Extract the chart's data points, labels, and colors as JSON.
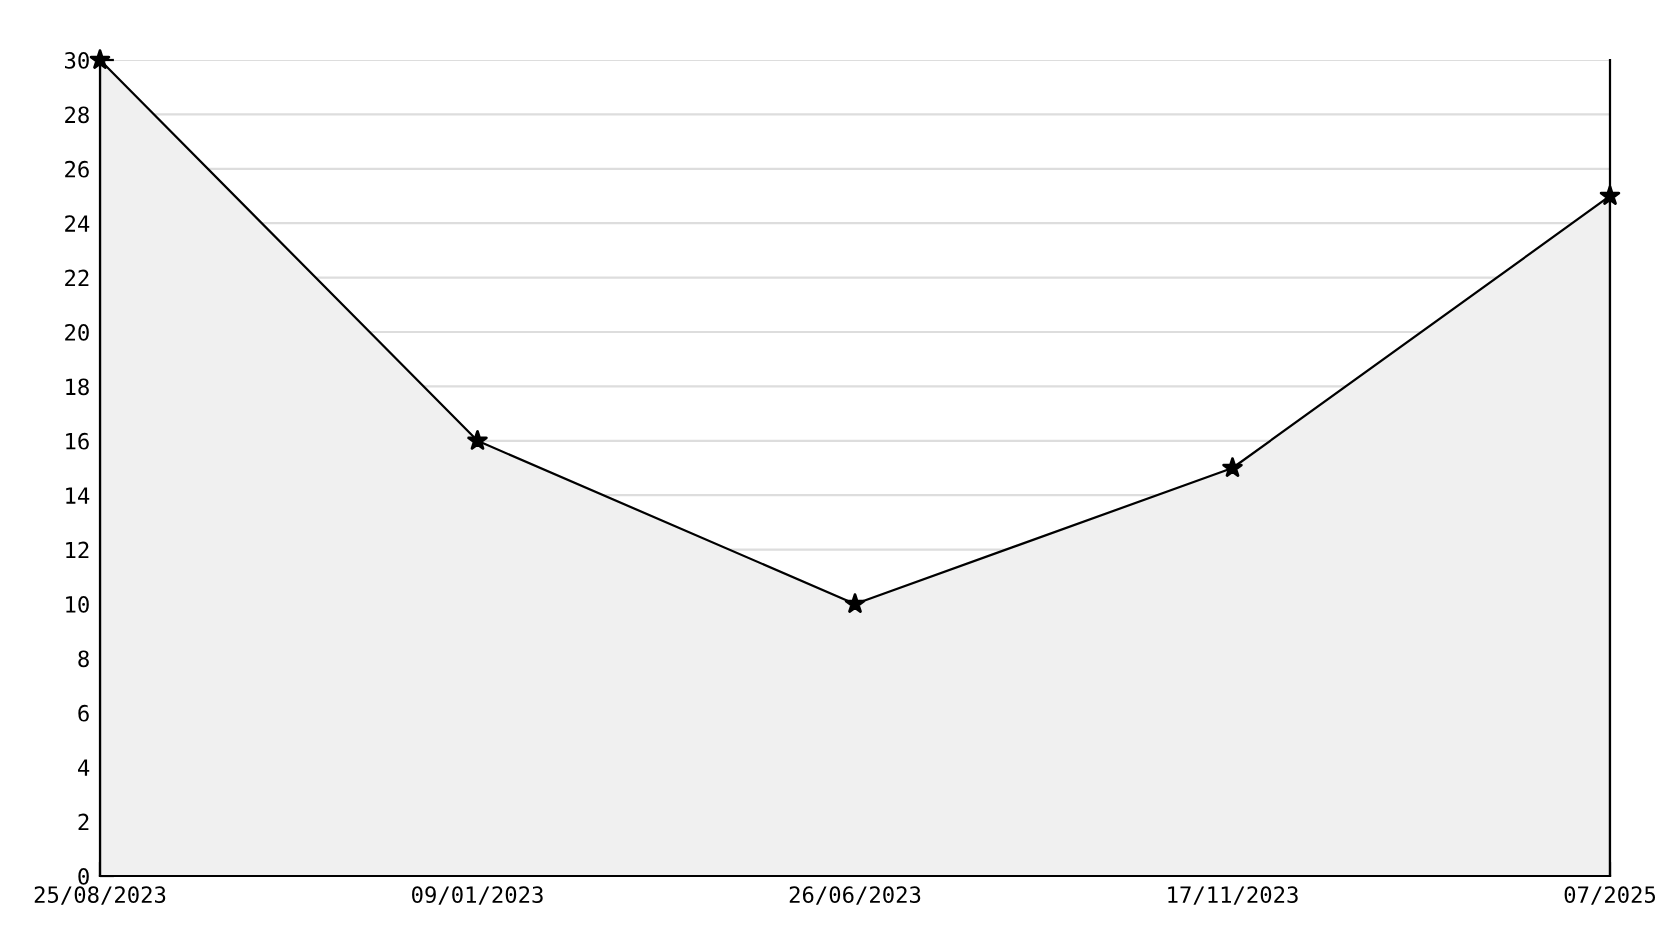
{
  "chart_data": {
    "type": "area",
    "categories": [
      "25/08/2023",
      "09/01/2023",
      "26/06/2023",
      "17/11/2023",
      "07/2025"
    ],
    "series": [
      {
        "color": "#000000",
        "values": [
          30,
          16,
          10,
          15,
          25
        ]
      }
    ],
    "ylim": [
      0,
      30
    ],
    "yticks": [
      0,
      2,
      4,
      6,
      8,
      10,
      12,
      14,
      16,
      18,
      20,
      22,
      24,
      26,
      28,
      30
    ],
    "grid": "y",
    "marker": "star",
    "line_style": "solid",
    "legend": false
  }
}
